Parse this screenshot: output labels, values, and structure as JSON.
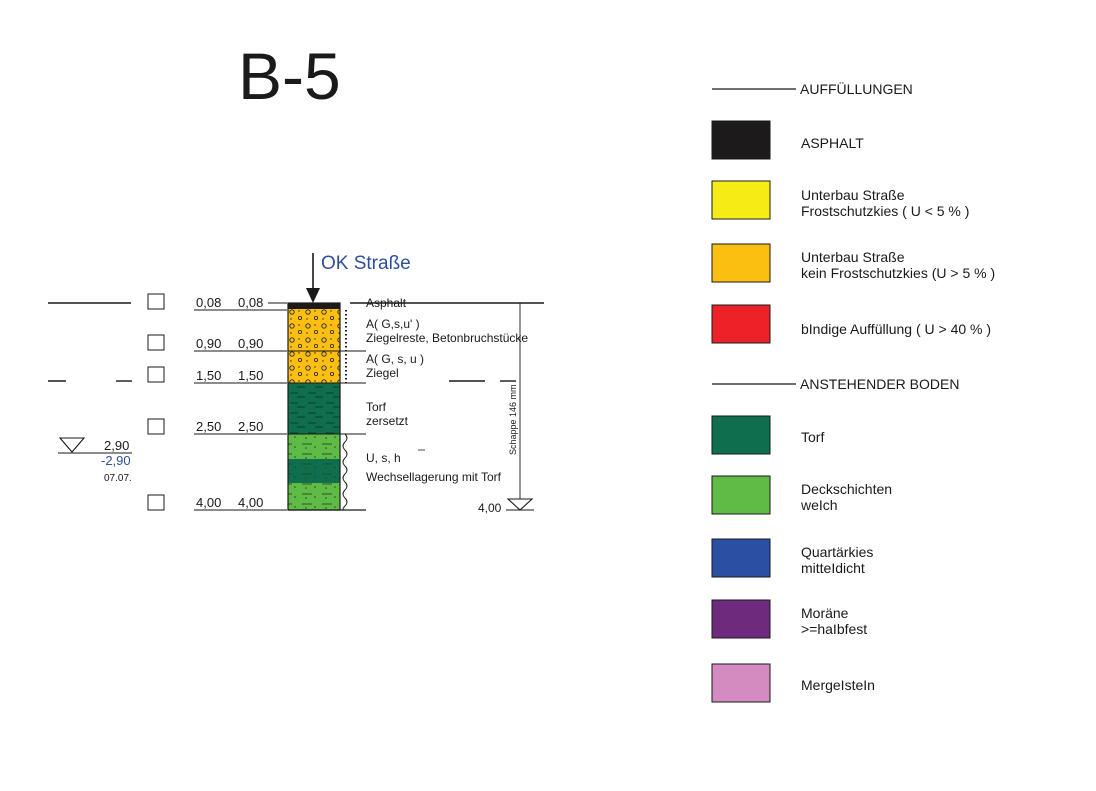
{
  "title": "B-5",
  "surface_label": "OK Straße",
  "depth_rows": [
    {
      "a": "0,08",
      "b": "0,08",
      "level": 0.08
    },
    {
      "a": "0,90",
      "b": "0,90",
      "level": 0.9
    },
    {
      "a": "1,50",
      "b": "1,50",
      "level": 1.5
    },
    {
      "a": "2,50",
      "b": "2,50",
      "level": 2.5
    },
    {
      "a": "4,00",
      "b": "4,00",
      "level": 4.0
    }
  ],
  "water": {
    "level_top": "2,90",
    "level_bottom": "-2,90",
    "date": "07.07."
  },
  "layer_notes": {
    "asphalt": "Asphalt",
    "fill1_symbol": "A( G,s,u' )",
    "fill1_desc": "Ziegelreste, Betonbruchstücke",
    "fill2_symbol": "A( G, s, u )",
    "fill2_desc": "Ziegel",
    "peat1": "Torf",
    "peat2": "zersetzt",
    "silt_symbol": "U, s, h",
    "silt_desc": "Wechsellagerung mit Torf"
  },
  "method_label": "Schappe 146 mm",
  "end_depth": "4,00",
  "legend": {
    "fill_heading": "AUFFÜLLUNGEN",
    "natural_heading": "ANSTEHENDER BODEN",
    "items": [
      {
        "color": "#1c1a1b",
        "line1": "ASPHALT",
        "line2": ""
      },
      {
        "color": "#f4ec14",
        "line1": "Unterbau Straße",
        "line2": "Frostschutzkies  ( U < 5 % )"
      },
      {
        "color": "#fbbf12",
        "line1": "Unterbau Straße",
        "line2": "kein Frostschutzkies  (U > 5 % )"
      },
      {
        "color": "#ec2228",
        "line1": "bIndige Auffüllung ( U > 40 % )",
        "line2": ""
      },
      {
        "color": "#0e6e4e",
        "line1": "Torf",
        "line2": ""
      },
      {
        "color": "#5fbb46",
        "line1": "Deckschichten",
        "line2": "weIch"
      },
      {
        "color": "#2b50a3",
        "line1": "Quartärkies",
        "line2": "mitteIdicht"
      },
      {
        "color": "#6e2a7c",
        "line1": "Moräne",
        "line2": ">=haIbfest"
      },
      {
        "color": "#d48bbf",
        "line1": "MergeIsteIn",
        "line2": ""
      }
    ]
  }
}
